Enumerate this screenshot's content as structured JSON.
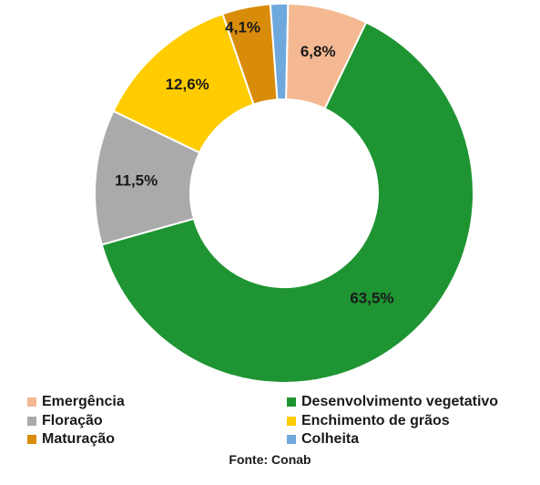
{
  "chart_data": {
    "type": "pie",
    "variant": "donut",
    "slices": [
      {
        "label": "Colheita",
        "value": 1.5,
        "color": "#6fa8dc",
        "data_label": ""
      },
      {
        "label": "Emergência",
        "value": 6.8,
        "color": "#f4b993",
        "data_label": "6,8%"
      },
      {
        "label": "Desenvolvimento vegetativo",
        "value": 63.5,
        "color": "#1e9432",
        "data_label": "63,5%"
      },
      {
        "label": "Floração",
        "value": 11.5,
        "color": "#aaaaaa",
        "data_label": "11,5%"
      },
      {
        "label": "Enchimento de grãos",
        "value": 12.6,
        "color": "#ffcc00",
        "data_label": "12,6%"
      },
      {
        "label": "Maturação",
        "value": 4.1,
        "color": "#d98c09",
        "data_label": "4,1%"
      }
    ],
    "legend_order": [
      "Emergência",
      "Desenvolvimento vegetativo",
      "Floração",
      "Enchimento de grãos",
      "Maturação",
      "Colheita"
    ],
    "legend_placement": "bottom"
  },
  "source": "Fonte: Conab"
}
